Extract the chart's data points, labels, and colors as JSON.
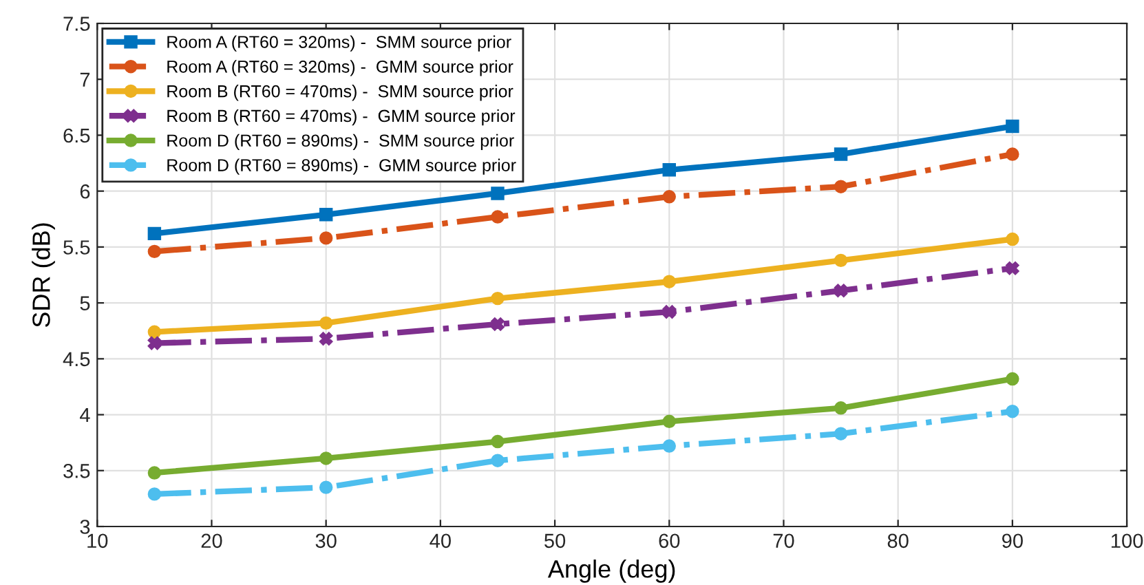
{
  "chart_data": {
    "type": "line",
    "xlabel": "Angle (deg)",
    "ylabel": "SDR (dB)",
    "x": [
      15,
      30,
      45,
      60,
      75,
      90
    ],
    "xlim": [
      10,
      100
    ],
    "xticks": [
      10,
      20,
      30,
      40,
      50,
      60,
      70,
      80,
      90,
      100
    ],
    "ylim": [
      3,
      7.5
    ],
    "yticks": [
      3,
      3.5,
      4,
      4.5,
      5,
      5.5,
      6,
      6.5,
      7,
      7.5
    ],
    "grid": true,
    "legend": "top left",
    "series": [
      {
        "name": "Room A (RT60 = 320ms) -  SMM source prior",
        "color": "#0072bd",
        "marker": "square",
        "line_style": "solid",
        "values": [
          5.62,
          5.79,
          5.98,
          6.19,
          6.33,
          6.58
        ]
      },
      {
        "name": "Room A (RT60 = 320ms) -  GMM source prior",
        "color": "#d95319",
        "marker": "circle",
        "line_style": "dashed",
        "values": [
          5.46,
          5.58,
          5.77,
          5.95,
          6.04,
          6.33
        ]
      },
      {
        "name": "Room B (RT60 = 470ms) -  SMM source prior",
        "color": "#edb120",
        "marker": "circle",
        "line_style": "solid",
        "values": [
          4.74,
          4.82,
          5.04,
          5.19,
          5.38,
          5.57
        ]
      },
      {
        "name": "Room B (RT60 = 470ms) -  GMM source prior",
        "color": "#7e2f8e",
        "marker": "cross",
        "line_style": "dashed",
        "values": [
          4.64,
          4.68,
          4.81,
          4.92,
          5.11,
          5.31
        ]
      },
      {
        "name": "Room D (RT60 = 890ms) -  SMM source prior",
        "color": "#77ac30",
        "marker": "circle",
        "line_style": "solid",
        "values": [
          3.48,
          3.61,
          3.76,
          3.94,
          4.06,
          4.32
        ]
      },
      {
        "name": "Room D (RT60 = 890ms) -  GMM source prior",
        "color": "#4dbeee",
        "marker": "circle",
        "line_style": "dashed",
        "values": [
          3.29,
          3.35,
          3.59,
          3.72,
          3.83,
          4.03
        ]
      }
    ]
  }
}
